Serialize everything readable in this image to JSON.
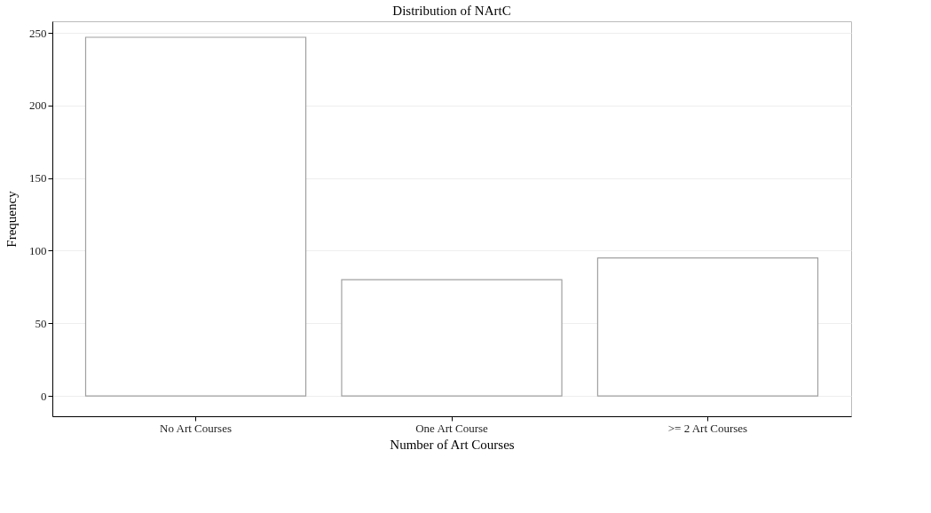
{
  "chart_data": {
    "type": "bar",
    "title": "Distribution of NArtC",
    "xlabel": "Number of Art Courses",
    "ylabel": "Frequency",
    "categories": [
      "No Art Courses",
      "One Art Course",
      ">= 2 Art Courses"
    ],
    "values": [
      247,
      80,
      95
    ],
    "color": "#ffffff",
    "ylim": [
      -14,
      258
    ],
    "yticks": [
      0,
      50,
      100,
      150,
      200,
      250
    ],
    "grid": "y"
  }
}
